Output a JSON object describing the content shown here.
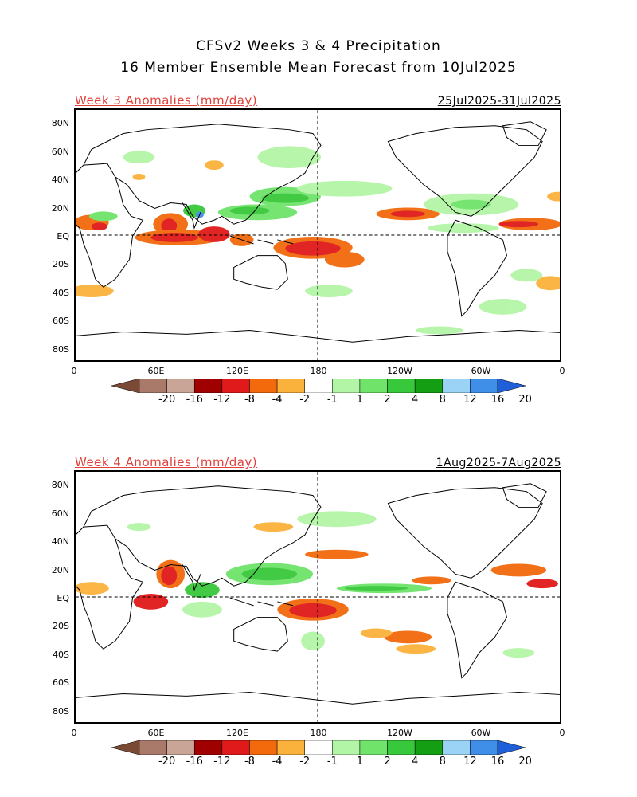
{
  "title_line1": "CFSv2 Weeks 3 & 4 Precipitation",
  "title_line2": "16 Member Ensemble Mean Forecast from 10Jul2025",
  "panels": [
    {
      "label": "Week 3 Anomalies (mm/day)",
      "dates": "25Jul2025-31Jul2025"
    },
    {
      "label": "Week 4 Anomalies (mm/day)",
      "dates": "1Aug2025-7Aug2025"
    }
  ],
  "lat_labels": [
    "80N",
    "60N",
    "40N",
    "20N",
    "EQ",
    "20S",
    "40S",
    "60S",
    "80S"
  ],
  "lon_labels": [
    "0",
    "60E",
    "120E",
    "180",
    "120W",
    "60W",
    "0"
  ],
  "colorbar": {
    "colors": [
      "#7b4a34",
      "#a9796a",
      "#c9a597",
      "#a00000",
      "#e01a1a",
      "#f26a0c",
      "#fbb23c",
      "#ffffff",
      "#b3f5a6",
      "#6fe36a",
      "#38c83c",
      "#139e13",
      "#9ad3f5",
      "#3f8ee8",
      "#1f5fd8"
    ],
    "labels": [
      "-20",
      "-16",
      "-12",
      "-8",
      "-4",
      "-2",
      "-1",
      "1",
      "2",
      "4",
      "8",
      "12",
      "16",
      "20"
    ]
  },
  "legend_colors": {
    "dry_strong": "#e01a1a",
    "dry_moderate": "#f26a0c",
    "dry_weak": "#fbb23c",
    "wet_weak": "#b3f5a6",
    "wet_moderate": "#6fe36a",
    "wet_strong": "#38c83c"
  }
}
